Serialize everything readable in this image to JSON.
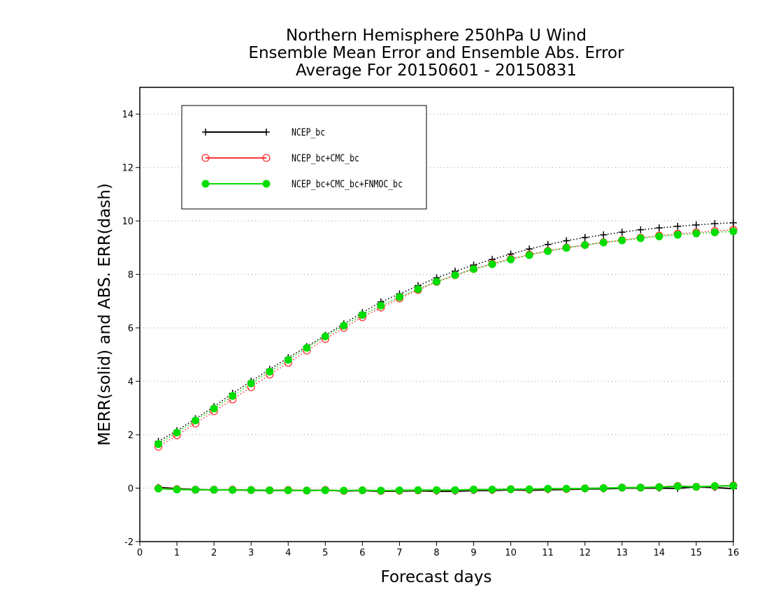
{
  "chart_data": {
    "type": "line",
    "title": [
      "Northern Hemisphere 250hPa U Wind",
      "Ensemble Mean Error and Ensemble Abs. Error",
      "Average For 20150601 - 20150831"
    ],
    "xlabel": "Forecast days",
    "ylabel": "MERR(solid) and ABS. ERR(dash)",
    "xlim": [
      0,
      16
    ],
    "ylim": [
      -2,
      15
    ],
    "xticks": [
      "0",
      "1",
      "2",
      "3",
      "4",
      "5",
      "6",
      "7",
      "8",
      "9",
      "10",
      "11",
      "12",
      "13",
      "14",
      "15",
      "16"
    ],
    "yticks": [
      "-2",
      "0",
      "2",
      "4",
      "6",
      "8",
      "10",
      "12",
      "14"
    ],
    "grid": "horizontal dotted",
    "legend_position": "top-left",
    "x": [
      0.5,
      1,
      1.5,
      2,
      2.5,
      3,
      3.5,
      4,
      4.5,
      5,
      5.5,
      6,
      6.5,
      7,
      7.5,
      8,
      8.5,
      9,
      9.5,
      10,
      10.5,
      11,
      11.5,
      12,
      12.5,
      13,
      13.5,
      14,
      14.5,
      15,
      15.5,
      16
    ],
    "series": [
      {
        "name": "NCEP_bc",
        "color": "#000000",
        "marker": "plus",
        "abs_err": [
          1.75,
          2.15,
          2.6,
          3.05,
          3.55,
          4.0,
          4.45,
          4.88,
          5.3,
          5.72,
          6.15,
          6.57,
          6.97,
          7.27,
          7.58,
          7.87,
          8.12,
          8.35,
          8.56,
          8.76,
          8.95,
          9.12,
          9.26,
          9.38,
          9.48,
          9.58,
          9.67,
          9.74,
          9.8,
          9.85,
          9.9,
          9.93
        ],
        "mean_err": [
          0.03,
          -0.02,
          -0.05,
          -0.07,
          -0.06,
          -0.08,
          -0.09,
          -0.08,
          -0.09,
          -0.07,
          -0.11,
          -0.09,
          -0.12,
          -0.11,
          -0.1,
          -0.12,
          -0.12,
          -0.09,
          -0.09,
          -0.06,
          -0.08,
          -0.06,
          -0.05,
          -0.03,
          -0.03,
          0.0,
          0.0,
          0.0,
          -0.01,
          0.05,
          0.02,
          -0.02
        ]
      },
      {
        "name": "NCEP_bc+CMC_bc",
        "color": "#ff3333",
        "marker": "open-circle",
        "abs_err": [
          1.55,
          1.98,
          2.42,
          2.88,
          3.32,
          3.78,
          4.25,
          4.69,
          5.15,
          5.58,
          6.0,
          6.4,
          6.76,
          7.1,
          7.42,
          7.72,
          7.97,
          8.2,
          8.4,
          8.58,
          8.74,
          8.88,
          9.0,
          9.1,
          9.2,
          9.28,
          9.37,
          9.45,
          9.52,
          9.57,
          9.62,
          9.67
        ],
        "mean_err": [
          -0.01,
          -0.04,
          -0.06,
          -0.06,
          -0.06,
          -0.07,
          -0.08,
          -0.07,
          -0.09,
          -0.07,
          -0.1,
          -0.08,
          -0.1,
          -0.09,
          -0.08,
          -0.08,
          -0.08,
          -0.06,
          -0.06,
          -0.04,
          -0.05,
          -0.03,
          -0.03,
          -0.01,
          0.0,
          0.02,
          0.02,
          0.04,
          0.08,
          0.05,
          0.07,
          0.1
        ]
      },
      {
        "name": "NCEP_bc+CMC_bc+FNMOC_bc",
        "color": "#00dd00",
        "marker": "filled-circle",
        "abs_err": [
          1.65,
          2.08,
          2.53,
          2.98,
          3.45,
          3.92,
          4.36,
          4.8,
          5.25,
          5.68,
          6.08,
          6.48,
          6.83,
          7.15,
          7.45,
          7.73,
          7.97,
          8.2,
          8.38,
          8.56,
          8.72,
          8.87,
          8.99,
          9.1,
          9.19,
          9.27,
          9.35,
          9.42,
          9.48,
          9.53,
          9.57,
          9.61
        ],
        "mean_err": [
          -0.02,
          -0.05,
          -0.06,
          -0.06,
          -0.07,
          -0.07,
          -0.08,
          -0.08,
          -0.09,
          -0.08,
          -0.09,
          -0.08,
          -0.09,
          -0.08,
          -0.07,
          -0.07,
          -0.07,
          -0.05,
          -0.05,
          -0.04,
          -0.04,
          -0.02,
          -0.02,
          -0.01,
          0.0,
          0.02,
          0.02,
          0.04,
          0.07,
          0.05,
          0.08,
          0.09
        ]
      }
    ]
  }
}
